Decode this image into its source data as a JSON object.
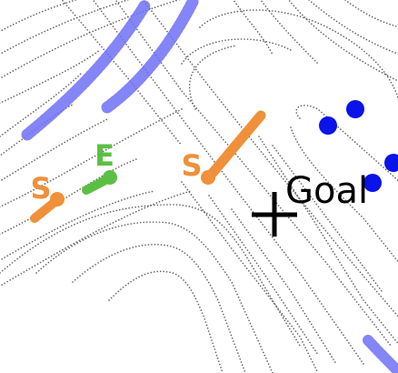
{
  "colors": {
    "background": "#ffffff",
    "lane_dots": "#666666",
    "trajectory_blue": "#6f70f4",
    "trajectory_blue_dark": "#4c4ee8",
    "agent_start": "#f0903a",
    "agent_end": "#5cbf45",
    "obstacle": "#0a13e8",
    "goal_mark": "#000000"
  },
  "markers": {
    "start_left": "S",
    "start_center": "S",
    "end": "E",
    "goal": "Goal"
  },
  "icons": {
    "goal": "crosshair-plus-icon",
    "agent": "vehicle-path-icon",
    "obstacle": "obstacle-dot-icon"
  }
}
